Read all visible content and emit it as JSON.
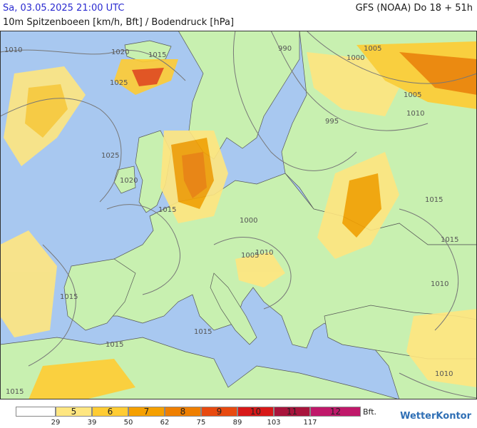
{
  "header": {
    "datetime": "Sa, 03.05.2025 21:00 UTC",
    "model": "GFS (NOAA) Do 18 + 51h",
    "subtitle": "10m Spitzenboeen [km/h, Bft] / Bodendruck [hPa]"
  },
  "colors": {
    "sea": "#a8c8f0",
    "land": "#c8f0b0",
    "bft5": "#ffe680",
    "bft6": "#ffcc33",
    "bft7": "#f5a000",
    "bft8": "#ef7f00",
    "bft9": "#e84a10",
    "bft10": "#d81818",
    "bft11": "#a8143c",
    "bft12": "#c0186a"
  },
  "isobars": [
    "1010",
    "1020",
    "1015",
    "1025",
    "1025",
    "1020",
    "1015",
    "1015",
    "1015",
    "1015",
    "1015",
    "990",
    "1000",
    "1005",
    "1010",
    "995",
    "1000",
    "1005",
    "1015",
    "1015",
    "1010",
    "1010",
    "1005",
    "1010"
  ],
  "legend": {
    "bft_labels": [
      "5",
      "6",
      "7",
      "8",
      "9",
      "10",
      "11",
      "12"
    ],
    "ticks": [
      "29",
      "39",
      "50",
      "62",
      "75",
      "89",
      "103",
      "117"
    ],
    "unit": "Bft.",
    "brand": "WetterKontor"
  }
}
